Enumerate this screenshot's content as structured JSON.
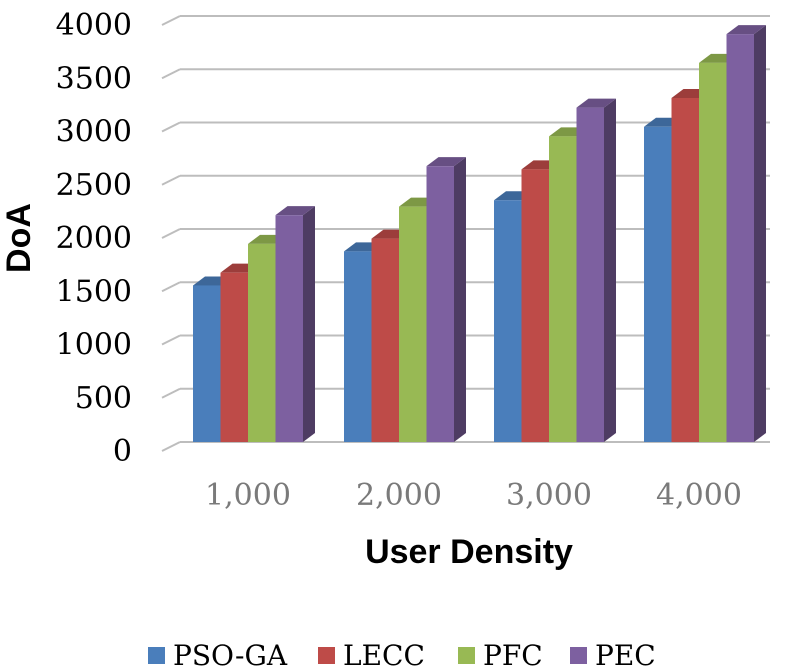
{
  "chart_data": {
    "type": "bar",
    "title": "",
    "xlabel": "User Density",
    "ylabel": "DoA",
    "categories": [
      "1,000",
      "2,000",
      "3,000",
      "4,000"
    ],
    "ylim": [
      0,
      4000
    ],
    "yticks": [
      "0",
      "500",
      "1000",
      "1500",
      "2000",
      "2500",
      "3000",
      "3500",
      "4000"
    ],
    "ytick_values": [
      0,
      500,
      1000,
      1500,
      2000,
      2500,
      3000,
      3500,
      4000
    ],
    "legend_position": "bottom",
    "series": [
      {
        "name": "PSO-GA",
        "color": "#4a7ebb",
        "values": [
          1470,
          1790,
          2270,
          2960
        ]
      },
      {
        "name": "LECC",
        "color": "#be4b48",
        "values": [
          1590,
          1910,
          2560,
          3230
        ]
      },
      {
        "name": "PFC",
        "color": "#98b954",
        "values": [
          1860,
          2210,
          2870,
          3560
        ]
      },
      {
        "name": "PEC",
        "color": "#7d60a0",
        "values": [
          2130,
          2590,
          3140,
          3830
        ]
      }
    ]
  }
}
